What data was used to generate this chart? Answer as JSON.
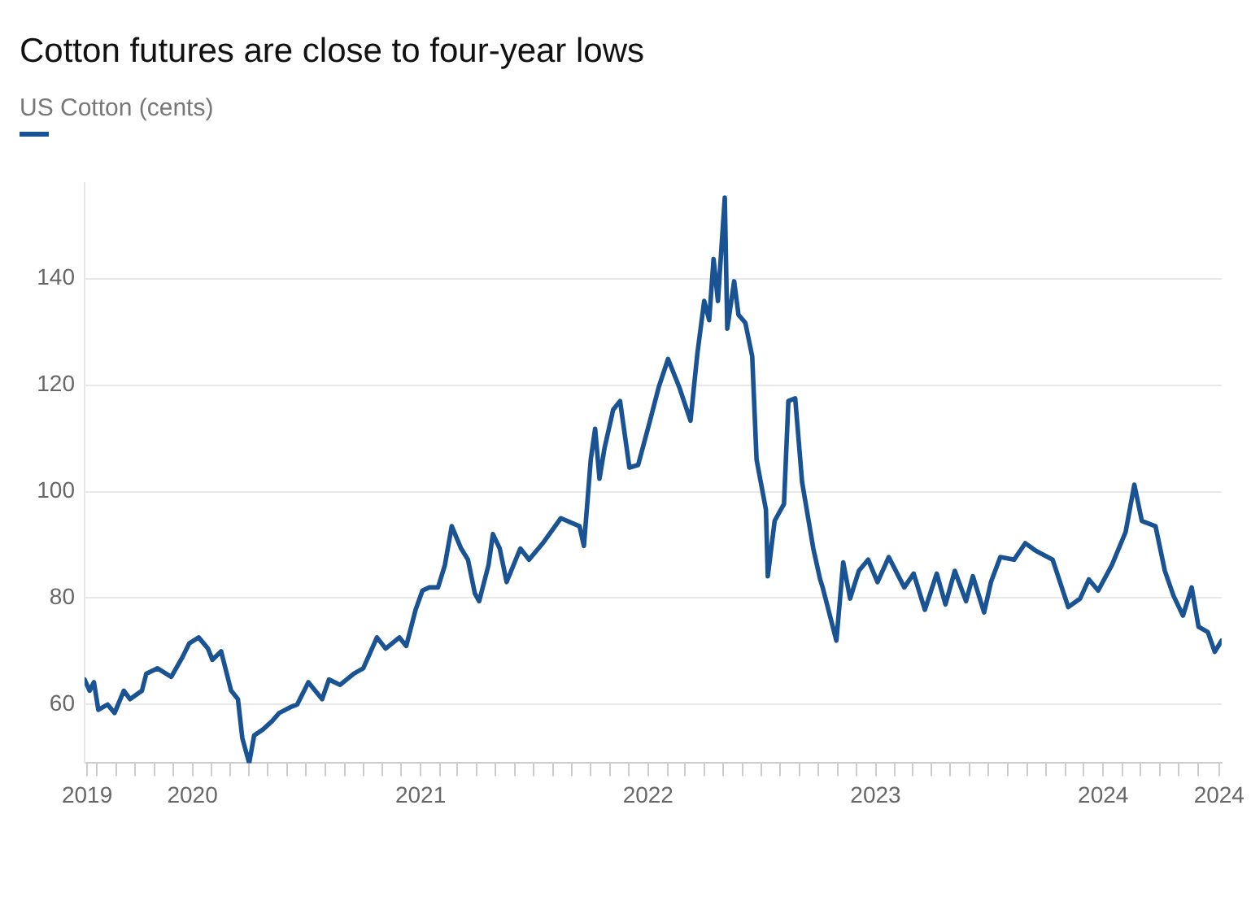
{
  "chart_data": {
    "type": "line",
    "title": "Cotton futures are close to four-year lows",
    "legend": "top left",
    "grid": "y",
    "x": [
      "2019-07-12",
      "2019-07-20",
      "2019-07-27",
      "2019-08-03",
      "2019-08-18",
      "2019-08-29",
      "2019-09-13",
      "2019-09-23",
      "2019-10-12",
      "2019-10-19",
      "2019-11-06",
      "2019-11-28",
      "2019-12-16",
      "2019-12-27",
      "2020-01-11",
      "2020-01-26",
      "2020-02-02",
      "2020-02-16",
      "2020-03-03",
      "2020-03-14",
      "2020-03-21",
      "2020-04-01",
      "2020-04-09",
      "2020-04-23",
      "2020-05-08",
      "2020-05-19",
      "2020-06-06",
      "2020-06-17",
      "2020-07-05",
      "2020-07-27",
      "2020-08-07",
      "2020-08-25",
      "2020-09-16",
      "2020-10-01",
      "2020-10-23",
      "2020-11-06",
      "2020-11-28",
      "2020-12-09",
      "2020-12-24",
      "2021-01-04",
      "2021-01-15",
      "2021-01-29",
      "2021-02-09",
      "2021-02-20",
      "2021-03-07",
      "2021-03-18",
      "2021-03-29",
      "2021-04-05",
      "2021-04-20",
      "2021-04-27",
      "2021-05-08",
      "2021-05-19",
      "2021-06-10",
      "2021-06-24",
      "2021-07-16",
      "2021-08-14",
      "2021-09-13",
      "2021-09-20",
      "2021-10-01",
      "2021-10-08",
      "2021-10-15",
      "2021-10-23",
      "2021-11-06",
      "2021-11-17",
      "2021-12-02",
      "2021-12-16",
      "2022-01-04",
      "2022-01-18",
      "2022-02-02",
      "2022-02-20",
      "2022-03-10",
      "2022-03-21",
      "2022-04-01",
      "2022-04-09",
      "2022-04-16",
      "2022-04-23",
      "2022-05-04",
      "2022-05-08",
      "2022-05-19",
      "2022-05-26",
      "2022-06-06",
      "2022-06-17",
      "2022-06-24",
      "2022-07-09",
      "2022-07-12",
      "2022-07-23",
      "2022-08-07",
      "2022-08-14",
      "2022-08-25",
      "2022-09-05",
      "2022-09-23",
      "2022-10-04",
      "2022-10-08",
      "2022-10-30",
      "2022-11-10",
      "2022-11-21",
      "2022-12-05",
      "2022-12-20",
      "2023-01-04",
      "2023-01-22",
      "2023-02-16",
      "2023-03-03",
      "2023-03-21",
      "2023-04-09",
      "2023-04-23",
      "2023-05-08",
      "2023-05-26",
      "2023-06-06",
      "2023-06-24",
      "2023-07-05",
      "2023-07-20",
      "2023-08-11",
      "2023-08-29",
      "2023-09-16",
      "2023-10-12",
      "2023-11-06",
      "2023-11-25",
      "2023-12-09",
      "2023-12-24",
      "2024-01-15",
      "2024-02-06",
      "2024-02-20",
      "2024-03-03",
      "2024-03-25",
      "2024-04-09",
      "2024-04-23",
      "2024-05-08",
      "2024-05-22",
      "2024-06-02",
      "2024-06-17",
      "2024-06-28",
      "2024-07-09"
    ],
    "series": [
      {
        "name": "US Cotton (cents)",
        "color": "#1a5394",
        "values": [
          64.7,
          62.6,
          64.2,
          59,
          60,
          58.4,
          62.6,
          61,
          62.6,
          65.8,
          66.8,
          65.2,
          68.9,
          71.5,
          72.6,
          70.5,
          68.4,
          70,
          62.6,
          61,
          53.7,
          49,
          54.2,
          55.3,
          56.9,
          58.4,
          59.5,
          60,
          64.2,
          61,
          64.7,
          63.7,
          65.8,
          66.8,
          72.6,
          70.5,
          72.6,
          71,
          77.8,
          81.4,
          82,
          82,
          86.2,
          93.5,
          89.3,
          87.2,
          80.9,
          79.4,
          86.2,
          92,
          89.3,
          83,
          89.3,
          87.2,
          90.3,
          95,
          93.5,
          89.8,
          106,
          111.8,
          102.4,
          108.1,
          115.4,
          117,
          104.5,
          105,
          113.3,
          119.6,
          124.9,
          119.6,
          113.3,
          125.9,
          135.8,
          132.2,
          143.7,
          135.8,
          155.2,
          130.6,
          139.5,
          133.2,
          131.7,
          125.4,
          106,
          96.6,
          84.1,
          94.5,
          97.7,
          117,
          117.5,
          101.8,
          89.3,
          83.5,
          82,
          72,
          86.7,
          79.9,
          85.1,
          87.2,
          83,
          87.7,
          82,
          84.6,
          77.8,
          84.6,
          78.8,
          85.1,
          79.4,
          84.1,
          77.3,
          83,
          87.7,
          87.2,
          90.3,
          88.8,
          87.2,
          78.3,
          79.9,
          83.5,
          81.4,
          86.2,
          92.4,
          101.3,
          94.5,
          93.5,
          85.1,
          80.4,
          76.7,
          82,
          74.6,
          73.6,
          69.9,
          72
        ]
      }
    ],
    "xlim": [
      "2019-07-12",
      "2024-07-09"
    ],
    "xticks": [
      {
        "value": "2019-07-16",
        "label": "2019"
      },
      {
        "value": "2019-08",
        "label": null
      },
      {
        "value": "2019-09",
        "label": null
      },
      {
        "value": "2019-10",
        "label": null
      },
      {
        "value": "2019-11",
        "label": null
      },
      {
        "value": "2019-12",
        "label": null
      },
      "2020",
      {
        "value": "2020-02",
        "label": null
      },
      {
        "value": "2020-03",
        "label": null
      },
      {
        "value": "2020-04",
        "label": null
      },
      {
        "value": "2020-05",
        "label": null
      },
      {
        "value": "2020-06",
        "label": null
      },
      {
        "value": "2020-07",
        "label": null
      },
      {
        "value": "2020-08",
        "label": null
      },
      {
        "value": "2020-09",
        "label": null
      },
      {
        "value": "2020-10",
        "label": null
      },
      {
        "value": "2020-11",
        "label": null
      },
      {
        "value": "2020-12",
        "label": null
      },
      "2021",
      {
        "value": "2021-02",
        "label": null
      },
      {
        "value": "2021-03",
        "label": null
      },
      {
        "value": "2021-04",
        "label": null
      },
      {
        "value": "2021-05",
        "label": null
      },
      {
        "value": "2021-06",
        "label": null
      },
      {
        "value": "2021-07",
        "label": null
      },
      {
        "value": "2021-08",
        "label": null
      },
      {
        "value": "2021-09",
        "label": null
      },
      {
        "value": "2021-10",
        "label": null
      },
      {
        "value": "2021-11",
        "label": null
      },
      {
        "value": "2021-12",
        "label": null
      },
      "2022",
      {
        "value": "2022-02",
        "label": null
      },
      {
        "value": "2022-03",
        "label": null
      },
      {
        "value": "2022-04",
        "label": null
      },
      {
        "value": "2022-05",
        "label": null
      },
      {
        "value": "2022-06",
        "label": null
      },
      {
        "value": "2022-07",
        "label": null
      },
      {
        "value": "2022-08",
        "label": null
      },
      {
        "value": "2022-09",
        "label": null
      },
      {
        "value": "2022-10",
        "label": null
      },
      {
        "value": "2022-11",
        "label": null
      },
      {
        "value": "2022-12",
        "label": null
      },
      "2023",
      {
        "value": "2023-02",
        "label": null
      },
      {
        "value": "2023-03",
        "label": null
      },
      {
        "value": "2023-04",
        "label": null
      },
      {
        "value": "2023-05",
        "label": null
      },
      {
        "value": "2023-06",
        "label": null
      },
      {
        "value": "2023-07",
        "label": null
      },
      {
        "value": "2023-08",
        "label": null
      },
      {
        "value": "2023-09",
        "label": null
      },
      {
        "value": "2023-10",
        "label": null
      },
      {
        "value": "2023-11",
        "label": null
      },
      {
        "value": "2023-12",
        "label": null
      },
      "2024",
      {
        "value": "2024-02",
        "label": null
      },
      {
        "value": "2024-03",
        "label": null
      },
      {
        "value": "2024-04",
        "label": null
      },
      {
        "value": "2024-05",
        "label": null
      },
      {
        "value": "2024-06",
        "label": null
      },
      {
        "value": "2024-07-05",
        "label": "2024"
      }
    ],
    "ylim": [
      49,
      158
    ],
    "yticks": [
      60,
      80,
      100,
      120,
      140
    ]
  }
}
